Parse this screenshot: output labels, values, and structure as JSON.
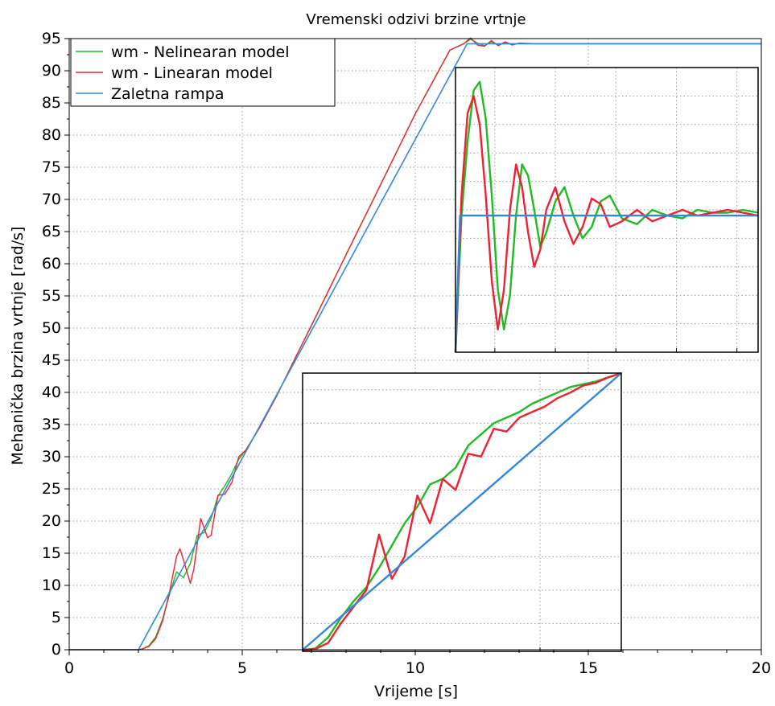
{
  "chart_data": {
    "type": "line",
    "title": "Vremenski odzivi brzine vrtnje",
    "xlabel": "Vrijeme [s]",
    "ylabel": "Mehanička brzina vrtnje [rad/s]",
    "xlim": [
      0,
      20
    ],
    "ylim": [
      0,
      95
    ],
    "xticks": [
      "0",
      "5",
      "10",
      "15",
      "20"
    ],
    "yticks": [
      "0",
      "5",
      "10",
      "15",
      "20",
      "25",
      "30",
      "35",
      "40",
      "45",
      "50",
      "55",
      "60",
      "65",
      "70",
      "75",
      "80",
      "85",
      "90",
      "95"
    ],
    "grid": true,
    "legend_position": "top-left",
    "series": [
      {
        "name": "wm - Nelinearan model",
        "color": "#22bb22",
        "x": [
          0,
          2.0,
          2.1,
          2.3,
          2.5,
          2.7,
          2.9,
          3.1,
          3.3,
          3.5,
          3.7,
          3.9,
          4.1,
          4.3,
          4.5,
          4.7,
          4.9,
          5.1,
          5.5,
          6.0,
          6.5,
          7.0,
          8.0,
          9.0,
          10.0,
          11.0,
          11.4,
          11.6,
          11.8,
          12.0,
          12.2,
          12.4,
          12.6,
          12.8,
          13.0,
          13.5,
          14,
          15,
          16,
          17,
          18,
          19,
          20
        ],
        "y": [
          0,
          0,
          0.1,
          0.6,
          2.0,
          4.8,
          8.6,
          12.1,
          11.2,
          13.4,
          17.8,
          18.2,
          20.4,
          23.9,
          25.5,
          27.4,
          29.6,
          31.0,
          34.5,
          39.5,
          45.0,
          50.4,
          61.4,
          72.3,
          83.3,
          93.2,
          94.2,
          94.9,
          94.3,
          93.9,
          94.5,
          94.0,
          94.4,
          94.1,
          94.25,
          94.2,
          94.2,
          94.2,
          94.2,
          94.2,
          94.2,
          94.2,
          94.2
        ]
      },
      {
        "name": "wm - Linearan model",
        "color": "#ee2233",
        "x": [
          0,
          2.0,
          2.1,
          2.3,
          2.5,
          2.7,
          2.9,
          3.1,
          3.2,
          3.3,
          3.5,
          3.6,
          3.8,
          4.0,
          4.1,
          4.3,
          4.5,
          4.7,
          4.9,
          5.1,
          5.5,
          6.0,
          6.5,
          7.0,
          8.0,
          9.0,
          10.0,
          11.0,
          11.4,
          11.6,
          11.8,
          12.0,
          12.2,
          12.4,
          12.6,
          12.8,
          13.0,
          13.5,
          14,
          15,
          16,
          17,
          18,
          19,
          20
        ],
        "y": [
          0,
          0,
          0.1,
          0.5,
          1.7,
          4.5,
          9.0,
          14.5,
          15.7,
          14.0,
          10.3,
          12.5,
          20.4,
          17.4,
          17.8,
          24.0,
          24.2,
          26.0,
          30.0,
          31.0,
          34.5,
          39.5,
          45.0,
          50.4,
          61.4,
          72.3,
          83.3,
          93.2,
          94.2,
          95.1,
          94.0,
          93.8,
          94.7,
          93.9,
          94.5,
          94.0,
          94.3,
          94.2,
          94.2,
          94.2,
          94.2,
          94.2,
          94.2,
          94.2,
          94.2
        ]
      },
      {
        "name": "Zaletna rampa",
        "color": "#3388dd",
        "x": [
          0,
          2.0,
          11.5,
          20
        ],
        "y": [
          0,
          0,
          94.2,
          94.2
        ]
      }
    ],
    "insets": [
      {
        "description_of": "zoom on ramp start",
        "series": [
          {
            "name": "wm - Nelinearan model",
            "color": "#22bb22",
            "x": [
              0,
              0.04,
              0.08,
              0.12,
              0.16,
              0.2,
              0.24,
              0.28,
              0.32,
              0.36,
              0.4,
              0.44,
              0.48,
              0.52,
              0.56,
              0.6,
              0.64,
              0.68,
              0.72,
              0.76,
              0.8,
              0.84,
              0.88,
              0.92,
              0.96,
              1.0
            ],
            "y": [
              0.005,
              0.01,
              0.05,
              0.12,
              0.18,
              0.23,
              0.3,
              0.38,
              0.46,
              0.52,
              0.6,
              0.62,
              0.66,
              0.74,
              0.78,
              0.82,
              0.84,
              0.86,
              0.89,
              0.91,
              0.93,
              0.95,
              0.96,
              0.97,
              0.985,
              1.0
            ]
          },
          {
            "name": "wm - Linearan model",
            "color": "#ee2233",
            "x": [
              0,
              0.04,
              0.08,
              0.12,
              0.16,
              0.2,
              0.24,
              0.28,
              0.32,
              0.36,
              0.4,
              0.44,
              0.48,
              0.52,
              0.56,
              0.6,
              0.64,
              0.68,
              0.72,
              0.76,
              0.8,
              0.84,
              0.88,
              0.92,
              0.96,
              1.0
            ],
            "y": [
              0.005,
              0.008,
              0.03,
              0.1,
              0.16,
              0.22,
              0.42,
              0.26,
              0.34,
              0.56,
              0.46,
              0.62,
              0.58,
              0.71,
              0.7,
              0.8,
              0.79,
              0.84,
              0.86,
              0.88,
              0.91,
              0.93,
              0.955,
              0.965,
              0.985,
              1.0
            ]
          },
          {
            "name": "Zaletna rampa",
            "color": "#3388dd",
            "x": [
              0,
              1.0
            ],
            "y": [
              0.005,
              1.0
            ]
          }
        ]
      },
      {
        "description_of": "zoom on steady state",
        "series": [
          {
            "name": "wm - Nelinearan model",
            "color": "#22bb22",
            "x": [
              0,
              0.02,
              0.04,
              0.06,
              0.08,
              0.1,
              0.12,
              0.14,
              0.16,
              0.18,
              0.2,
              0.22,
              0.24,
              0.26,
              0.28,
              0.3,
              0.33,
              0.36,
              0.39,
              0.42,
              0.45,
              0.48,
              0.51,
              0.55,
              0.6,
              0.65,
              0.7,
              0.75,
              0.8,
              0.85,
              0.9,
              0.95,
              1.0
            ],
            "y": [
              0.0,
              0.48,
              0.74,
              0.92,
              0.95,
              0.82,
              0.55,
              0.22,
              0.08,
              0.2,
              0.48,
              0.66,
              0.62,
              0.5,
              0.37,
              0.42,
              0.53,
              0.58,
              0.48,
              0.4,
              0.44,
              0.53,
              0.55,
              0.47,
              0.45,
              0.5,
              0.48,
              0.47,
              0.5,
              0.49,
              0.49,
              0.5,
              0.49
            ]
          },
          {
            "name": "wm - Linearan model",
            "color": "#ee2233",
            "x": [
              0,
              0.02,
              0.04,
              0.06,
              0.08,
              0.1,
              0.12,
              0.14,
              0.16,
              0.18,
              0.2,
              0.22,
              0.24,
              0.26,
              0.28,
              0.3,
              0.33,
              0.36,
              0.39,
              0.42,
              0.45,
              0.48,
              0.51,
              0.55,
              0.6,
              0.65,
              0.7,
              0.75,
              0.8,
              0.85,
              0.9,
              0.95,
              1.0
            ],
            "y": [
              0.0,
              0.55,
              0.84,
              0.9,
              0.8,
              0.55,
              0.25,
              0.08,
              0.22,
              0.5,
              0.66,
              0.58,
              0.42,
              0.3,
              0.36,
              0.5,
              0.58,
              0.46,
              0.38,
              0.44,
              0.54,
              0.52,
              0.44,
              0.46,
              0.5,
              0.46,
              0.48,
              0.5,
              0.48,
              0.49,
              0.5,
              0.49,
              0.48
            ]
          },
          {
            "name": "Zaletna rampa",
            "color": "#3388dd",
            "x": [
              0,
              0.015,
              1.0
            ],
            "y": [
              0.0,
              0.48,
              0.48
            ]
          }
        ]
      }
    ]
  }
}
